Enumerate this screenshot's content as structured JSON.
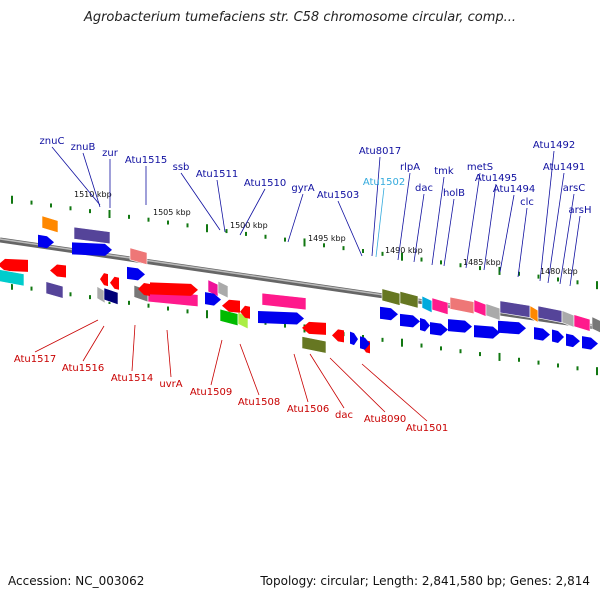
{
  "title": "Agrobacterium tumefaciens str. C58 chromosome circular, comp...",
  "accession": "Accession: NC_003062",
  "summary": "Topology: circular; Length: 2,841,580 bp; Genes: 2,814",
  "colors": {
    "plus_label": "#1010a0",
    "minus_label": "#c80000",
    "highlight_label": "#33aadd",
    "backbone": "#888888",
    "tick": "#117711"
  },
  "scale_labels": [
    "1510 kbp",
    "1505 kbp",
    "1500 kbp",
    "1495 kbp",
    "1490 kbp",
    "1485 kbp",
    "1480 kbp"
  ],
  "top_labels": [
    "znuC",
    "znuB",
    "zur",
    "Atu1515",
    "ssb",
    "Atu1511",
    "Atu1510",
    "gyrA",
    "Atu1503",
    "Atu8017",
    "Atu1502",
    "rlpA",
    "dac",
    "tmk",
    "holB",
    "metS",
    "Atu1495",
    "Atu1494",
    "clc",
    "Atu1492",
    "Atu1491",
    "arsC",
    "arsH"
  ],
  "bottom_labels": [
    "Atu1517",
    "Atu1516",
    "Atu1514",
    "uvrA",
    "Atu1509",
    "Atu1508",
    "Atu1506",
    "dac",
    "Atu8090",
    "Atu1501"
  ]
}
